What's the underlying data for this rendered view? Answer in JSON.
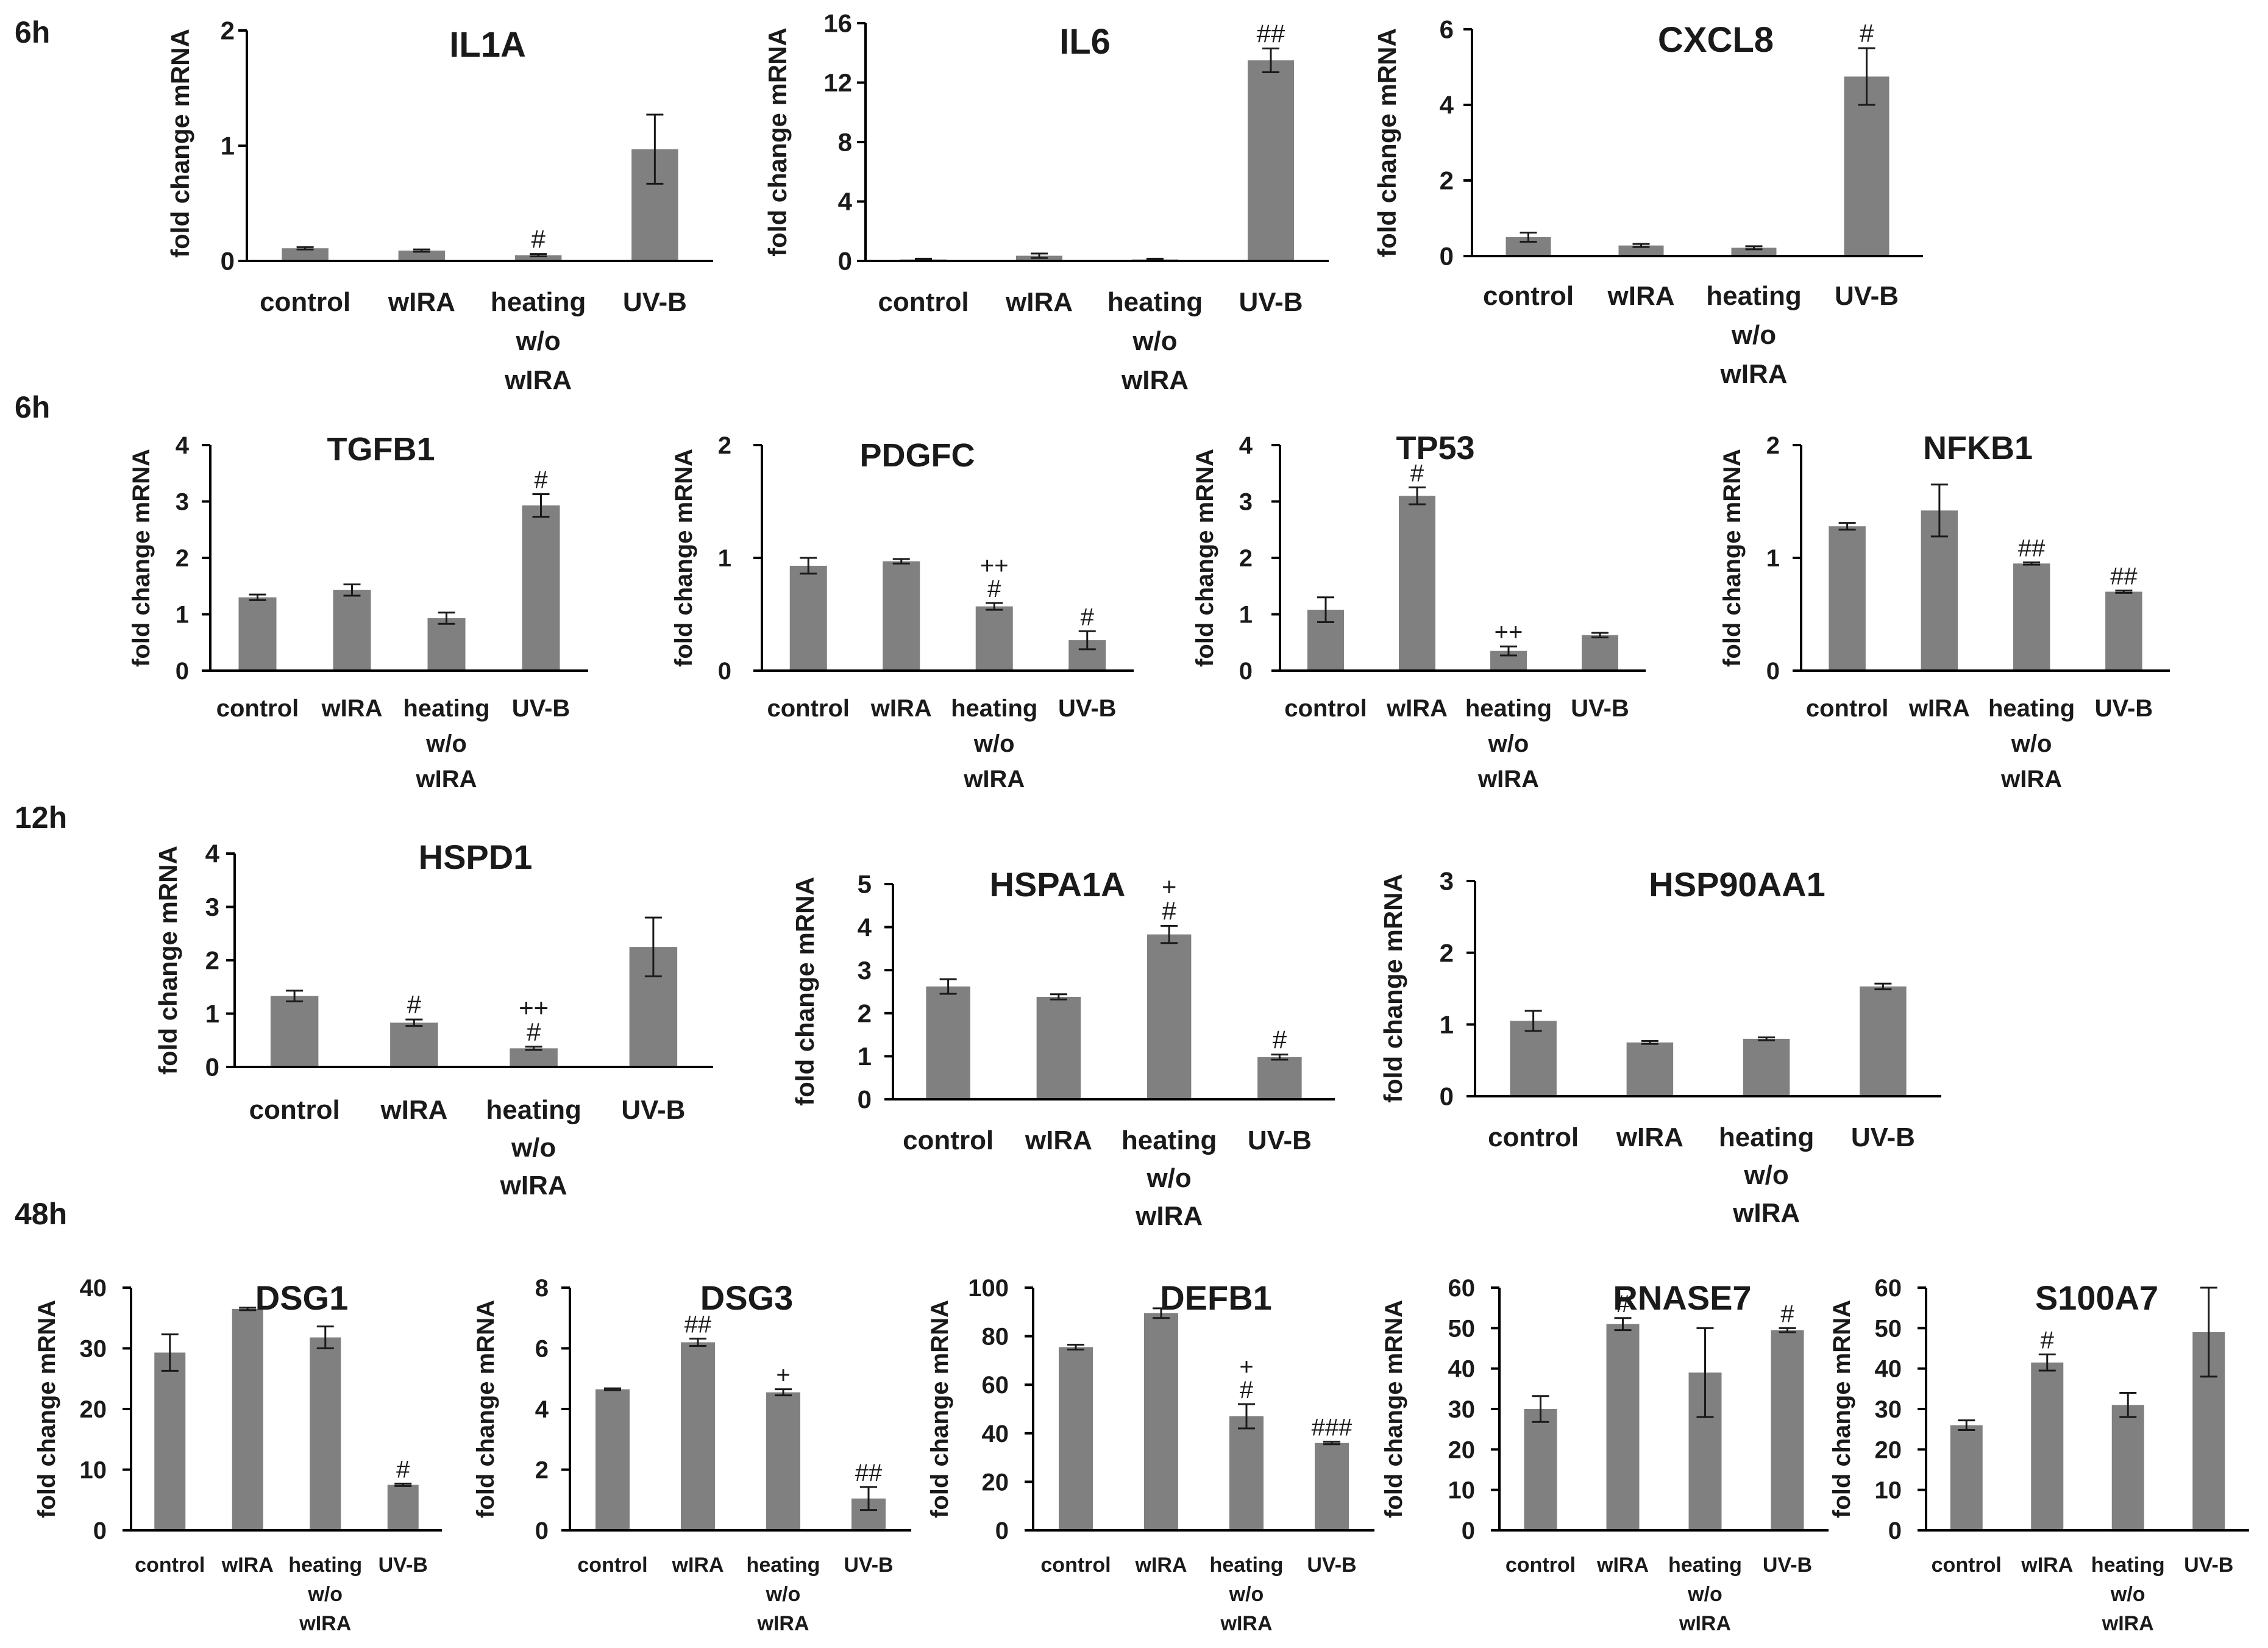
{
  "figure": {
    "y_axis_label": "fold change mRNA",
    "bar_color": "#808080",
    "axis_color": "#000000",
    "row_labels": [
      "6h",
      "6h",
      "12h",
      "48h"
    ]
  },
  "chart_data": [
    {
      "type": "bar",
      "row": 0,
      "title": "IL1A",
      "ylabel": "fold change mRNA",
      "ylim": [
        0,
        2
      ],
      "yticks": [
        0,
        1,
        2
      ],
      "categories": [
        [
          "control"
        ],
        [
          "wIRA"
        ],
        [
          "heating",
          "w/o",
          "wIRA"
        ],
        [
          "UV-B"
        ]
      ],
      "values": [
        0.11,
        0.09,
        0.05,
        0.97
      ],
      "errors": [
        0.01,
        0.01,
        0.01,
        0.3
      ],
      "annotations": [
        [],
        [],
        [
          "#"
        ],
        []
      ]
    },
    {
      "type": "bar",
      "row": 0,
      "title": "IL6",
      "ylabel": "fold change mRNA",
      "ylim": [
        0,
        16
      ],
      "yticks": [
        0,
        4,
        8,
        12,
        16
      ],
      "categories": [
        [
          "control"
        ],
        [
          "wIRA"
        ],
        [
          "heating",
          "w/o",
          "wIRA"
        ],
        [
          "UV-B"
        ]
      ],
      "values": [
        0.1,
        0.35,
        0.1,
        13.5
      ],
      "errors": [
        0.05,
        0.15,
        0.05,
        0.8
      ],
      "annotations": [
        [],
        [],
        [],
        [
          "##"
        ]
      ]
    },
    {
      "type": "bar",
      "row": 0,
      "title": "CXCL8",
      "ylabel": "fold change mRNA",
      "ylim": [
        0,
        6
      ],
      "yticks": [
        0,
        2,
        4,
        6
      ],
      "categories": [
        [
          "control"
        ],
        [
          "wIRA"
        ],
        [
          "heating",
          "w/o",
          "wIRA"
        ],
        [
          "UV-B"
        ]
      ],
      "values": [
        0.5,
        0.28,
        0.22,
        4.75
      ],
      "errors": [
        0.12,
        0.04,
        0.04,
        0.75
      ],
      "annotations": [
        [],
        [],
        [],
        [
          "#"
        ]
      ]
    },
    {
      "type": "bar",
      "row": 1,
      "title": "TGFB1",
      "ylabel": "fold change mRNA",
      "ylim": [
        0,
        4
      ],
      "yticks": [
        0,
        1,
        2,
        3,
        4
      ],
      "categories": [
        [
          "control"
        ],
        [
          "wIRA"
        ],
        [
          "heating",
          "w/o",
          "wIRA"
        ],
        [
          "UV-B"
        ]
      ],
      "values": [
        1.3,
        1.43,
        0.93,
        2.93
      ],
      "errors": [
        0.05,
        0.1,
        0.1,
        0.2
      ],
      "annotations": [
        [],
        [],
        [],
        [
          "#"
        ]
      ]
    },
    {
      "type": "bar",
      "row": 1,
      "title": "PDGFC",
      "ylabel": "fold change mRNA",
      "ylim": [
        0,
        2
      ],
      "yticks": [
        0,
        1,
        2
      ],
      "categories": [
        [
          "control"
        ],
        [
          "wIRA"
        ],
        [
          "heating",
          "w/o",
          "wIRA"
        ],
        [
          "UV-B"
        ]
      ],
      "values": [
        0.93,
        0.97,
        0.57,
        0.27
      ],
      "errors": [
        0.07,
        0.02,
        0.03,
        0.08
      ],
      "annotations": [
        [],
        [],
        [
          "++",
          "#"
        ],
        [
          "#"
        ]
      ]
    },
    {
      "type": "bar",
      "row": 1,
      "title": "TP53",
      "ylabel": "fold change mRNA",
      "ylim": [
        0,
        4
      ],
      "yticks": [
        0,
        1,
        2,
        3,
        4
      ],
      "categories": [
        [
          "control"
        ],
        [
          "wIRA"
        ],
        [
          "heating",
          "w/o",
          "wIRA"
        ],
        [
          "UV-B"
        ]
      ],
      "values": [
        1.08,
        3.1,
        0.35,
        0.63
      ],
      "errors": [
        0.22,
        0.15,
        0.08,
        0.04
      ],
      "annotations": [
        [],
        [
          "#"
        ],
        [
          "++"
        ],
        []
      ]
    },
    {
      "type": "bar",
      "row": 1,
      "title": "NFKB1",
      "ylabel": "fold change mRNA",
      "ylim": [
        0,
        2
      ],
      "yticks": [
        0,
        1,
        2
      ],
      "categories": [
        [
          "control"
        ],
        [
          "wIRA"
        ],
        [
          "heating",
          "w/o",
          "wIRA"
        ],
        [
          "UV-B"
        ]
      ],
      "values": [
        1.28,
        1.42,
        0.95,
        0.7
      ],
      "errors": [
        0.03,
        0.23,
        0.01,
        0.01
      ],
      "annotations": [
        [],
        [],
        [
          "##"
        ],
        [
          "##"
        ]
      ]
    },
    {
      "type": "bar",
      "row": 2,
      "title": "HSPD1",
      "ylabel": "fold change mRNA",
      "ylim": [
        0,
        4
      ],
      "yticks": [
        0,
        1,
        2,
        3,
        4
      ],
      "categories": [
        [
          "control"
        ],
        [
          "wIRA"
        ],
        [
          "heating",
          "w/o",
          "wIRA"
        ],
        [
          "UV-B"
        ]
      ],
      "values": [
        1.33,
        0.83,
        0.35,
        2.25
      ],
      "errors": [
        0.1,
        0.06,
        0.03,
        0.55
      ],
      "annotations": [
        [],
        [
          "#"
        ],
        [
          "++",
          "#"
        ],
        []
      ]
    },
    {
      "type": "bar",
      "row": 2,
      "title": "HSPA1A",
      "ylabel": "fold change mRNA",
      "ylim": [
        0,
        5
      ],
      "yticks": [
        0,
        1,
        2,
        3,
        4,
        5
      ],
      "categories": [
        [
          "control"
        ],
        [
          "wIRA"
        ],
        [
          "heating",
          "w/o",
          "wIRA"
        ],
        [
          "UV-B"
        ]
      ],
      "values": [
        2.62,
        2.38,
        3.83,
        0.98
      ],
      "errors": [
        0.17,
        0.06,
        0.2,
        0.06
      ],
      "annotations": [
        [],
        [],
        [
          "+",
          "#"
        ],
        [
          "#"
        ]
      ]
    },
    {
      "type": "bar",
      "row": 2,
      "title": "HSP90AA1",
      "ylabel": "fold change mRNA",
      "ylim": [
        0,
        3
      ],
      "yticks": [
        0,
        1,
        2,
        3
      ],
      "categories": [
        [
          "control"
        ],
        [
          "wIRA"
        ],
        [
          "heating",
          "w/o",
          "wIRA"
        ],
        [
          "UV-B"
        ]
      ],
      "values": [
        1.05,
        0.75,
        0.8,
        1.53
      ],
      "errors": [
        0.14,
        0.02,
        0.02,
        0.04
      ],
      "annotations": [
        [],
        [],
        [],
        []
      ]
    },
    {
      "type": "bar",
      "row": 3,
      "title": "DSG1",
      "ylabel": "fold change mRNA",
      "ylim": [
        0,
        40
      ],
      "yticks": [
        0,
        10,
        20,
        30,
        40
      ],
      "categories": [
        [
          "control"
        ],
        [
          "wIRA"
        ],
        [
          "heating",
          "w/o",
          "wIRA"
        ],
        [
          "UV-B"
        ]
      ],
      "values": [
        29.3,
        36.5,
        31.8,
        7.5
      ],
      "errors": [
        3.0,
        0.2,
        1.8,
        0.2
      ],
      "annotations": [
        [],
        [],
        [],
        [
          "#"
        ]
      ]
    },
    {
      "type": "bar",
      "row": 3,
      "title": "DSG3",
      "ylabel": "fold change mRNA",
      "ylim": [
        0,
        8
      ],
      "yticks": [
        0,
        2,
        4,
        6,
        8
      ],
      "categories": [
        [
          "control"
        ],
        [
          "wIRA"
        ],
        [
          "heating",
          "w/o",
          "wIRA"
        ],
        [
          "UV-B"
        ]
      ],
      "values": [
        4.65,
        6.2,
        4.55,
        1.05
      ],
      "errors": [
        0.03,
        0.12,
        0.1,
        0.38
      ],
      "annotations": [
        [],
        [
          "##"
        ],
        [
          "+"
        ],
        [
          "##"
        ]
      ]
    },
    {
      "type": "bar",
      "row": 3,
      "title": "DEFB1",
      "ylabel": "fold change mRNA",
      "ylim": [
        0,
        100
      ],
      "yticks": [
        0,
        20,
        40,
        60,
        80,
        100
      ],
      "categories": [
        [
          "control"
        ],
        [
          "wIRA"
        ],
        [
          "heating",
          "w/o",
          "wIRA"
        ],
        [
          "UV-B"
        ]
      ],
      "values": [
        75.5,
        89.5,
        47,
        36
      ],
      "errors": [
        1.0,
        2.0,
        5.0,
        0.5
      ],
      "annotations": [
        [],
        [],
        [
          "+",
          "#"
        ],
        [
          "###"
        ]
      ]
    },
    {
      "type": "bar",
      "row": 3,
      "title": "RNASE7",
      "ylabel": "fold change mRNA",
      "ylim": [
        0,
        60
      ],
      "yticks": [
        0,
        10,
        20,
        30,
        40,
        50,
        60
      ],
      "categories": [
        [
          "control"
        ],
        [
          "wIRA"
        ],
        [
          "heating",
          "w/o",
          "wIRA"
        ],
        [
          "UV-B"
        ]
      ],
      "values": [
        30,
        51,
        39,
        49.5
      ],
      "errors": [
        3.2,
        1.5,
        11.0,
        0.5
      ],
      "annotations": [
        [],
        [
          "#"
        ],
        [],
        [
          "#"
        ]
      ]
    },
    {
      "type": "bar",
      "row": 3,
      "title": "S100A7",
      "ylabel": "fold change mRNA",
      "ylim": [
        0,
        60
      ],
      "yticks": [
        0,
        10,
        20,
        30,
        40,
        50,
        60
      ],
      "categories": [
        [
          "control"
        ],
        [
          "wIRA"
        ],
        [
          "heating",
          "w/o",
          "wIRA"
        ],
        [
          "UV-B"
        ]
      ],
      "values": [
        26,
        41.5,
        31,
        49
      ],
      "errors": [
        1.2,
        2.0,
        3.0,
        11.0
      ],
      "annotations": [
        [],
        [
          "#"
        ],
        [],
        []
      ]
    }
  ]
}
